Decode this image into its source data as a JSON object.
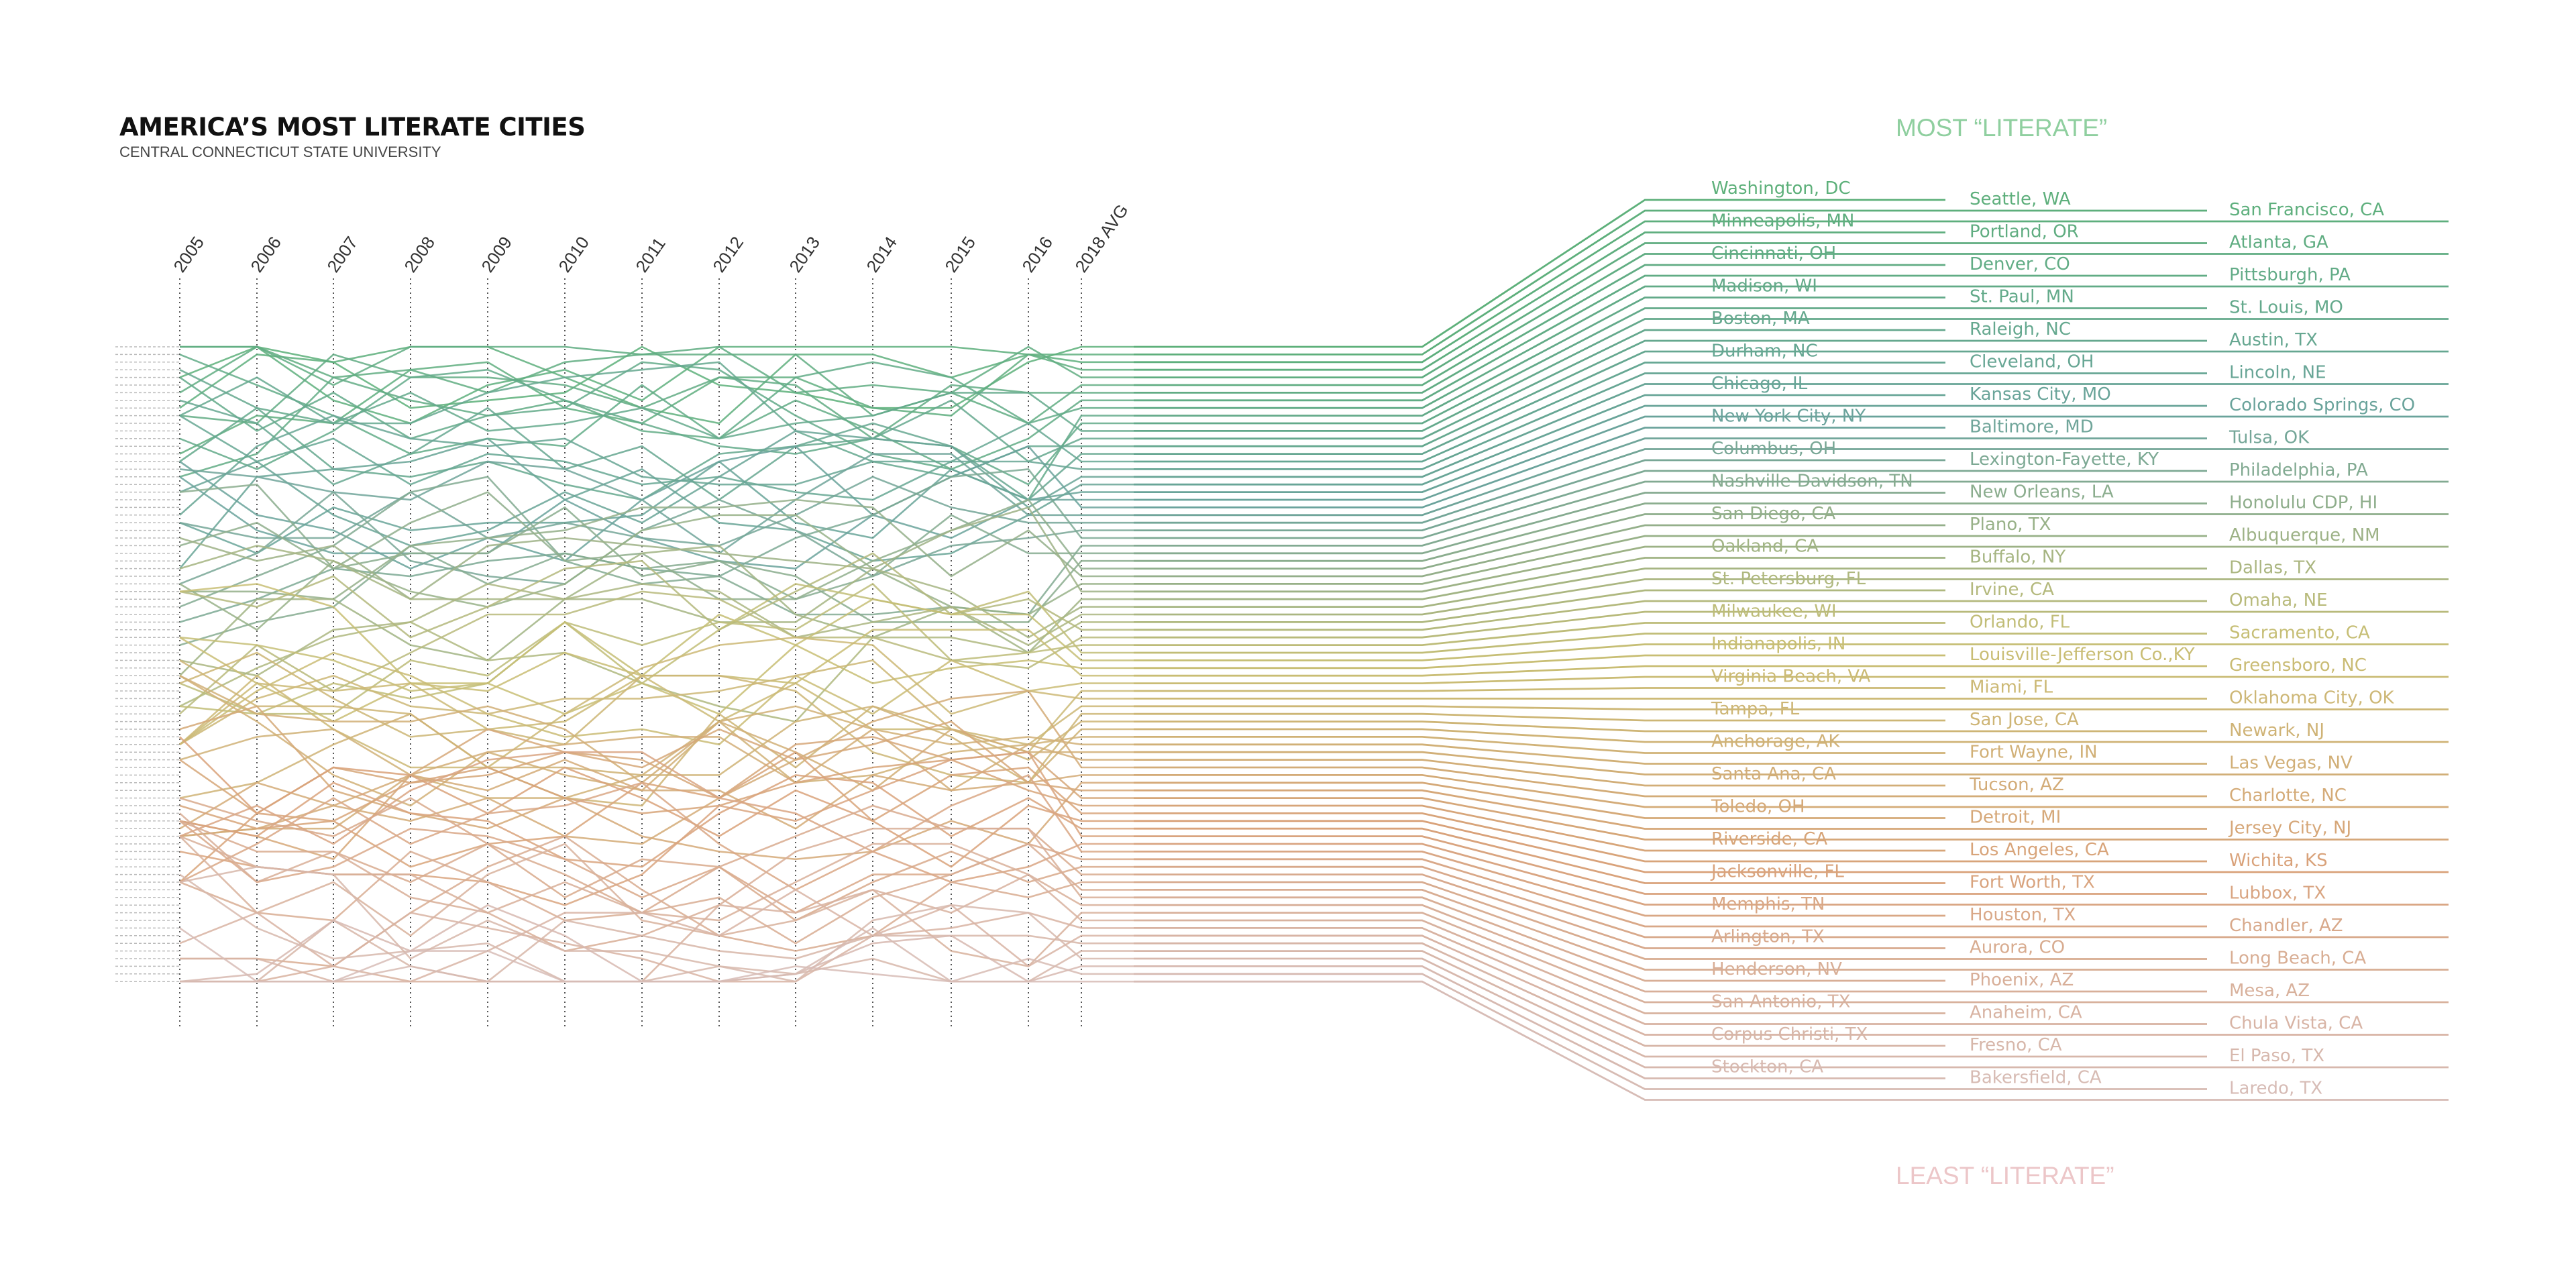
{
  "header": {
    "title": "AMERICA’S MOST LITERATE CITIES",
    "subtitle": "CENTRAL CONNECTICUT STATE UNIVERSITY"
  },
  "callouts": {
    "top": "MOST “LITERATE”",
    "bottom": "LEAST “LITERATE”"
  },
  "colors": {
    "most": "#5db07a",
    "upper_mid": "#6aa39c",
    "mid": "#c8bf74",
    "lower_mid": "#d9a27a",
    "least": "#d7bcb6",
    "axis": "#555555",
    "tick_line": "#bbbbbb"
  },
  "chart_data": {
    "type": "line",
    "title": "AMERICA’S MOST LITERATE CITIES",
    "subtitle": "CENTRAL CONNECTICUT STATE UNIVERSITY",
    "x": [
      "2005",
      "2006",
      "2007",
      "2008",
      "2009",
      "2010",
      "2011",
      "2012",
      "2013",
      "2014",
      "2015",
      "2016",
      "2018 AVG"
    ],
    "y_meaning": "literacy rank (1 = most literate)",
    "ylim": [
      1,
      81
    ],
    "grid": false,
    "cities_ranked_2018_avg": [
      "Washington, DC",
      "Seattle, WA",
      "San Francisco, CA",
      "Minneapolis, MN",
      "Portland, OR",
      "Atlanta, GA",
      "Cincinnati, OH",
      "Denver, CO",
      "Pittsburgh, PA",
      "Madison, WI",
      "St. Paul, MN",
      "St. Louis, MO",
      "Boston, MA",
      "Raleigh, NC",
      "Austin, TX",
      "Durham, NC",
      "Cleveland, OH",
      "Lincoln, NE",
      "Chicago, IL",
      "Kansas City, MO",
      "Colorado Springs, CO",
      "New York City, NY",
      "Baltimore, MD",
      "Tulsa, OK",
      "Columbus, OH",
      "Lexington-Fayette, KY",
      "Philadelphia, PA",
      "Nashville-Davidson, TN",
      "New Orleans, LA",
      "Honolulu CDP, HI",
      "San Diego, CA",
      "Plano, TX",
      "Albuquerque, NM",
      "Oakland, CA",
      "Buffalo, NY",
      "Dallas, TX",
      "St. Petersburg, FL",
      "Irvine, CA",
      "Omaha, NE",
      "Milwaukee, WI",
      "Orlando, FL",
      "Sacramento, CA",
      "Indianapolis, IN",
      "Louisville-Jefferson Co.,KY",
      "Greensboro, NC",
      "Virginia Beach, VA",
      "Miami, FL",
      "Oklahoma City, OK",
      "Tampa, FL",
      "San Jose, CA",
      "Newark, NJ",
      "Anchorage, AK",
      "Fort Wayne, IN",
      "Las Vegas, NV",
      "Santa Ana, CA",
      "Tucson, AZ",
      "Charlotte, NC",
      "Toledo, OH",
      "Detroit, MI",
      "Jersey City, NJ",
      "Riverside, CA",
      "Los Angeles, CA",
      "Wichita, KS",
      "Jacksonville, FL",
      "Fort Worth, TX",
      "Lubbox, TX",
      "Memphis, TN",
      "Houston, TX",
      "Chandler, AZ",
      "Arlington, TX",
      "Aurora, CO",
      "Long Beach, CA",
      "Henderson, NV",
      "Phoenix, AZ",
      "Mesa, AZ",
      "San Antonio, TX",
      "Anaheim, CA",
      "Chula Vista, CA",
      "Corpus Christi, TX",
      "Fresno, CA",
      "El Paso, TX",
      "Stockton, CA",
      "Bakersfield, CA",
      "Laredo, TX"
    ]
  }
}
